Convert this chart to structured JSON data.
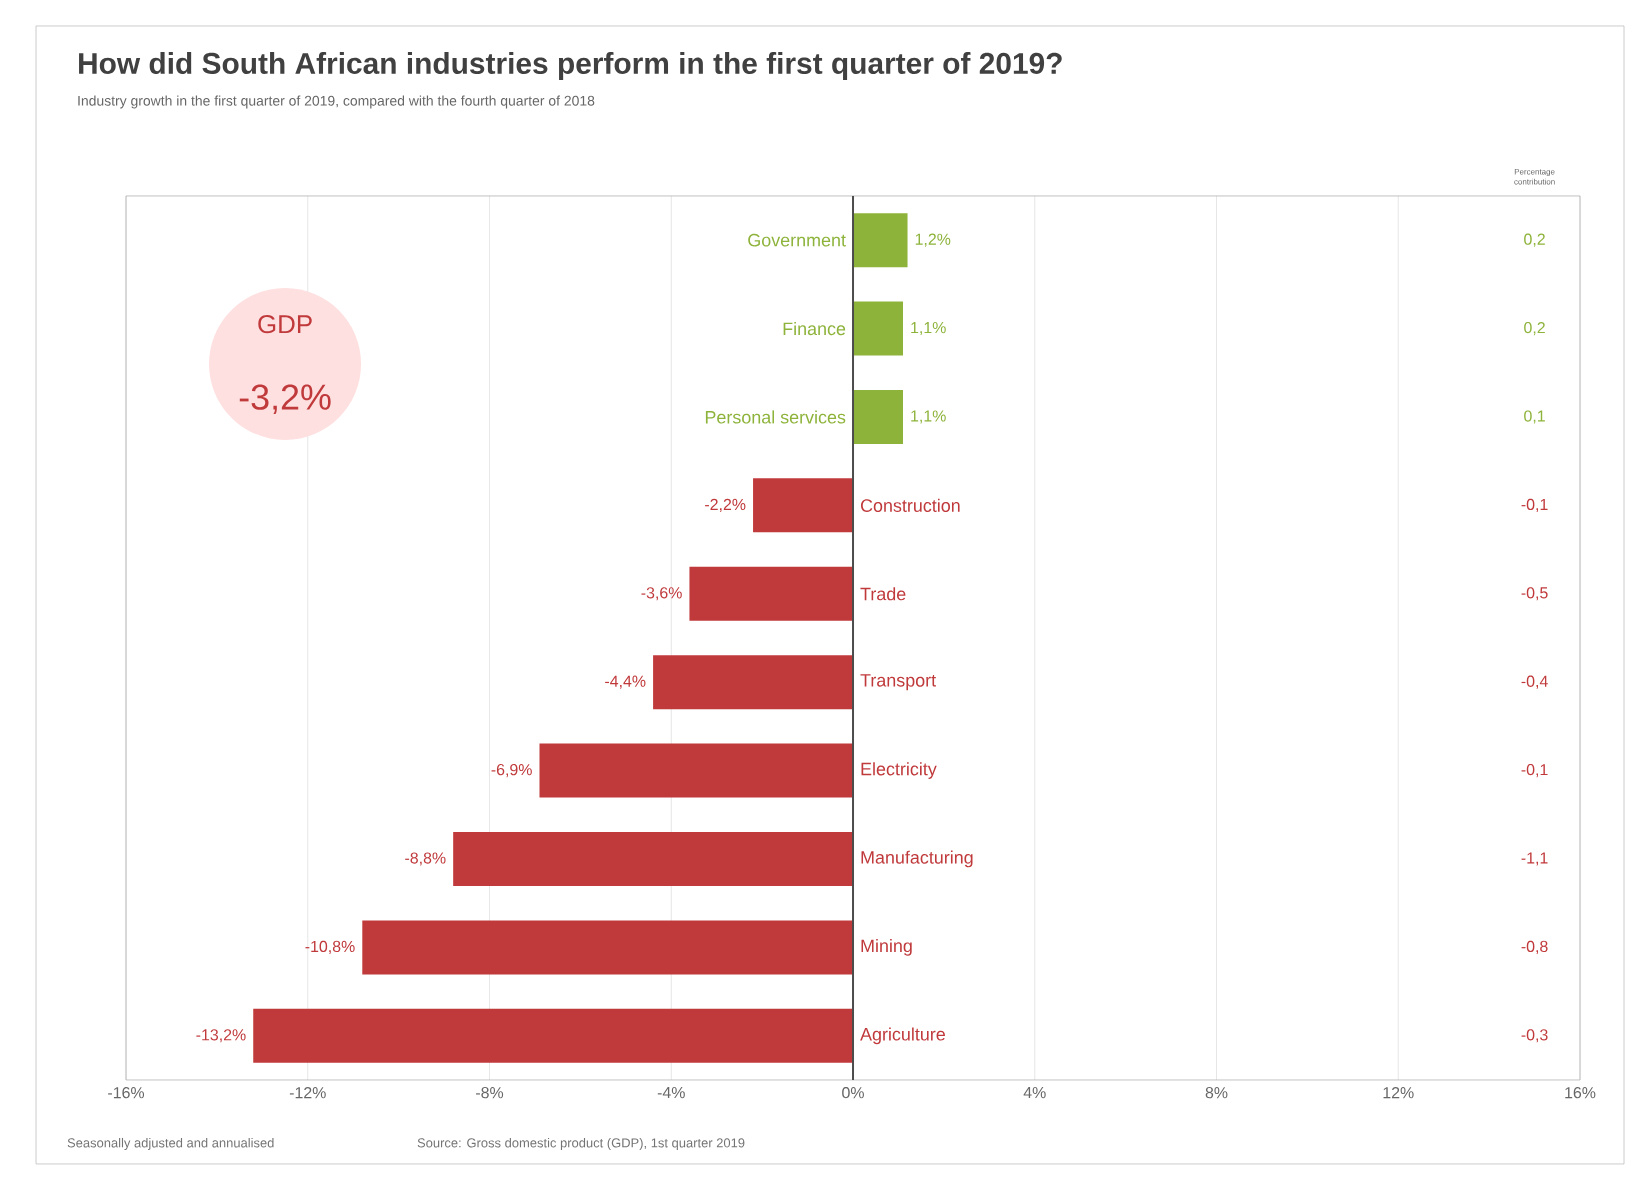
{
  "chart_data": {
    "type": "bar",
    "orientation": "horizontal",
    "title": "How did South African industries perform in the first quarter of 2019?",
    "subtitle": "Industry growth in the first quarter of 2019, compared with the fourth quarter of 2018",
    "categories": [
      "Government",
      "Finance",
      "Personal services",
      "Construction",
      "Trade",
      "Transport",
      "Electricity",
      "Manufacturing",
      "Mining",
      "Agriculture"
    ],
    "values": [
      1.2,
      1.1,
      1.1,
      -2.2,
      -3.6,
      -4.4,
      -6.9,
      -8.8,
      -10.8,
      -13.2
    ],
    "value_labels": [
      "1,2%",
      "1,1%",
      "1,1%",
      "-2,2%",
      "-3,6%",
      "-4,4%",
      "-6,9%",
      "-8,8%",
      "-10,8%",
      "-13,2%"
    ],
    "colors": [
      "#8db33a",
      "#8db33a",
      "#8db33a",
      "#c0393b",
      "#c0393b",
      "#c0393b",
      "#c0393b",
      "#c0393b",
      "#c0393b",
      "#c0393b"
    ],
    "xlim": [
      -16,
      16
    ],
    "xticks": [
      {
        "value": -16,
        "label": "-16%"
      },
      {
        "value": -12,
        "label": "-12%"
      },
      {
        "value": -8,
        "label": "-8%"
      },
      {
        "value": -4,
        "label": "-4%"
      },
      {
        "value": 0,
        "label": "0%"
      },
      {
        "value": 4,
        "label": "4%"
      },
      {
        "value": 8,
        "label": "8%"
      },
      {
        "value": 12,
        "label": "12%"
      },
      {
        "value": 16,
        "label": "16%"
      }
    ],
    "grid": "x",
    "annotations": [
      "GDP",
      "-3,2%",
      "Percentage contribution",
      "0,2",
      "0,2",
      "0,1",
      "-0,1",
      "-0,5",
      "-0,4",
      "-0,1",
      "-1,1",
      "-0,8",
      "-0,3",
      "Seasonally adjusted and annualised",
      "Source: Gross domestic product (GDP), 1st quarter 2019"
    ]
  }
}
